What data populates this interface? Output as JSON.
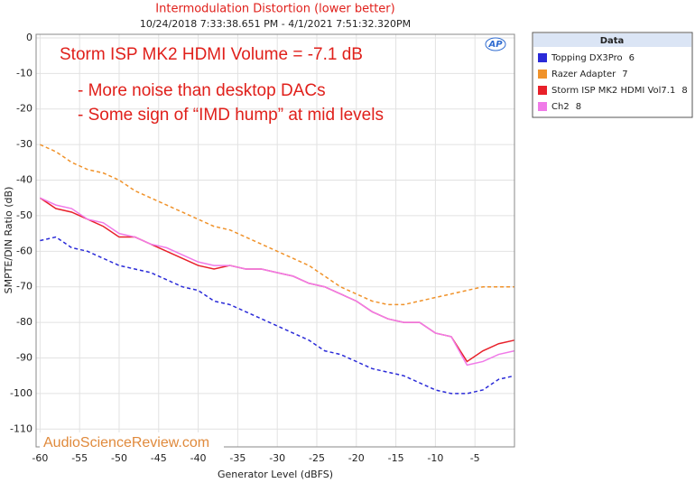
{
  "chart_data": {
    "type": "line",
    "title": "Intermodulation Distortion (lower better)",
    "subtitle": "10/24/2018 7:33:38.651 PM - 4/1/2021 7:51:32.320PM",
    "x_label": "Generator Level (dBFS)",
    "y_label": "SMPTE/DIN Ratio (dB)",
    "annotations": [
      "Storm ISP MK2 HDMI Volume = -7.1 dB",
      "- More noise than desktop DACs",
      "- Some sign of “IMD hump” at mid levels"
    ],
    "watermark": "AudioScienceReview.com",
    "logo": "AP",
    "legend_title": "Data",
    "grid": true,
    "xlim": [
      -60.5,
      0
    ],
    "ylim": [
      -115,
      1
    ],
    "xticks": [
      -60,
      -55,
      -50,
      -45,
      -40,
      -35,
      -30,
      -25,
      -20,
      -15,
      -10,
      -5
    ],
    "yticks": [
      0,
      -10,
      -20,
      -30,
      -40,
      -50,
      -60,
      -70,
      -80,
      -90,
      -100,
      -110
    ],
    "x": [
      -60,
      -58,
      -56,
      -54,
      -52,
      -50,
      -48,
      -46,
      -44,
      -42,
      -40,
      -38,
      -36,
      -34,
      -32,
      -30,
      -28,
      -26,
      -24,
      -22,
      -20,
      -18,
      -16,
      -14,
      -12,
      -10,
      -8,
      -6,
      -4,
      -2,
      0
    ],
    "series": [
      {
        "name": "Topping DX3Pro",
        "index": "6",
        "color": "#2a2ad8",
        "dashed": true,
        "values": [
          -57,
          -56,
          -59,
          -60,
          -62,
          -64,
          -65,
          -66,
          -68,
          -70,
          -71,
          -74,
          -75,
          -77,
          -79,
          -81,
          -83,
          -85,
          -88,
          -89,
          -91,
          -93,
          -94,
          -95,
          -97,
          -99,
          -100,
          -100,
          -99,
          -96,
          -95
        ]
      },
      {
        "name": "Razer Adapter",
        "index": "7",
        "color": "#f0922a",
        "dashed": true,
        "values": [
          -30,
          -32,
          -35,
          -37,
          -38,
          -40,
          -43,
          -45,
          -47,
          -49,
          -51,
          -53,
          -54,
          -56,
          -58,
          -60,
          -62,
          -64,
          -67,
          -70,
          -72,
          -74,
          -75,
          -75,
          -74,
          -73,
          -72,
          -71,
          -70,
          -70,
          -70
        ]
      },
      {
        "name": "Storm ISP MK2 HDMI Vol7.1",
        "index": "8",
        "color": "#e8202a",
        "dashed": false,
        "values": [
          -45,
          -48,
          -49,
          -51,
          -53,
          -56,
          -56,
          -58,
          -60,
          -62,
          -64,
          -65,
          -64,
          -65,
          -65,
          -66,
          -67,
          -69,
          -70,
          -72,
          -74,
          -77,
          -79,
          -80,
          -80,
          -83,
          -84,
          -91,
          -88,
          -86,
          -85
        ]
      },
      {
        "name": "Ch2",
        "index": "8",
        "color": "#f07ae8",
        "dashed": false,
        "values": [
          -45,
          -47,
          -48,
          -51,
          -52,
          -55,
          -56,
          -58,
          -59,
          -61,
          -63,
          -64,
          -64,
          -65,
          -65,
          -66,
          -67,
          -69,
          -70,
          -72,
          -74,
          -77,
          -79,
          -80,
          -80,
          -83,
          -84,
          -92,
          -91,
          -89,
          -88
        ]
      }
    ]
  }
}
